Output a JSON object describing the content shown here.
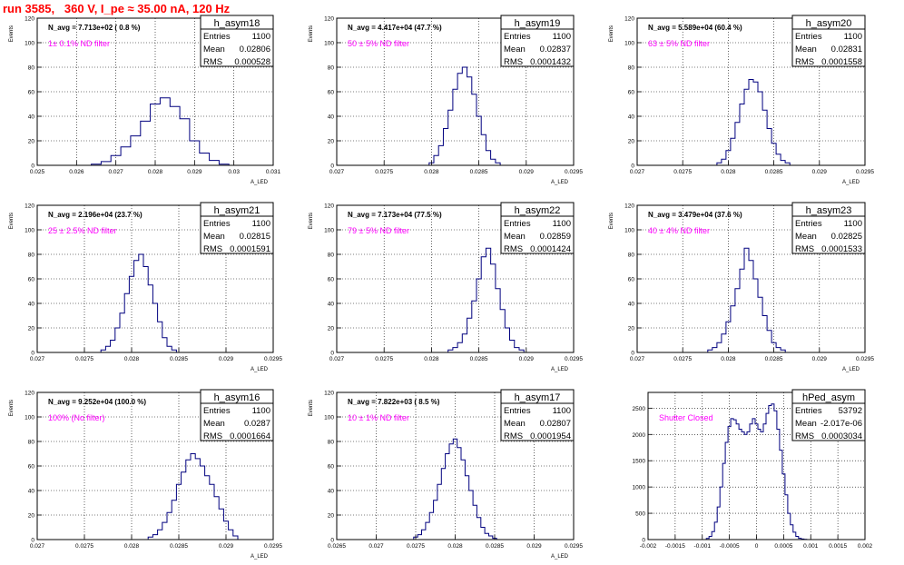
{
  "header": {
    "run_title": "run 3585,   360 V, I_pe ≈ 35.00 nA, 120 Hz"
  },
  "colors": {
    "title": "#ff0000",
    "annotation": "#ff00ff",
    "histogram": "#00007f",
    "frame": "#000000",
    "grid": "#000000"
  },
  "chart_data": [
    {
      "type": "bar",
      "title": "h_asym18",
      "navg": "N_avg = 7.713e+02 ( 0.8 %)",
      "annotation": "1± 0.1% ND filter",
      "stats": {
        "entries_label": "Entries",
        "entries": "1100",
        "mean_label": "Mean",
        "mean": "0.02806",
        "rms_label": "RMS",
        "rms": "0.000528"
      },
      "xlabel": "A_LED",
      "ylabel": "Events",
      "xlim": [
        0.025,
        0.031
      ],
      "ylim": [
        0,
        120
      ],
      "xticks": [
        "0.025",
        "0.026",
        "0.027",
        "0.028",
        "0.029",
        "0.03",
        "0.031"
      ],
      "yticks": [
        "0",
        "20",
        "40",
        "60",
        "80",
        "100",
        "120"
      ],
      "x": [
        0.0265,
        0.02675,
        0.027,
        0.02725,
        0.0275,
        0.02775,
        0.028,
        0.02825,
        0.0285,
        0.02875,
        0.029,
        0.02925,
        0.0295,
        0.02975
      ],
      "values": [
        1,
        3,
        8,
        15,
        24,
        36,
        50,
        55,
        48,
        38,
        20,
        10,
        4,
        1
      ]
    },
    {
      "type": "bar",
      "title": "h_asym19",
      "navg": "N_avg = 4.417e+04 (47.7 %)",
      "annotation": "50 ± 5% ND filter",
      "stats": {
        "entries_label": "Entries",
        "entries": "1100",
        "mean_label": "Mean",
        "mean": "0.02837",
        "rms_label": "RMS",
        "rms": "0.0001432"
      },
      "xlabel": "A_LED",
      "ylabel": "Events",
      "xlim": [
        0.027,
        0.0295
      ],
      "ylim": [
        0,
        120
      ],
      "xticks": [
        "0.027",
        "0.0275",
        "0.028",
        "0.0285",
        "0.029",
        "0.0295"
      ],
      "yticks": [
        "0",
        "20",
        "40",
        "60",
        "80",
        "100",
        "120"
      ],
      "x": [
        0.028,
        0.02805,
        0.0281,
        0.02815,
        0.0282,
        0.02825,
        0.0283,
        0.02835,
        0.0284,
        0.02845,
        0.0285,
        0.02855,
        0.0286,
        0.02865,
        0.0287
      ],
      "values": [
        2,
        8,
        16,
        30,
        45,
        62,
        75,
        80,
        72,
        58,
        40,
        25,
        12,
        5,
        2
      ]
    },
    {
      "type": "bar",
      "title": "h_asym20",
      "navg": "N_avg = 5.589e+04 (60.4 %)",
      "annotation": "63 ± 5% ND filter",
      "stats": {
        "entries_label": "Entries",
        "entries": "1100",
        "mean_label": "Mean",
        "mean": "0.02831",
        "rms_label": "RMS",
        "rms": "0.0001558"
      },
      "xlabel": "A_LED",
      "ylabel": "Events",
      "xlim": [
        0.027,
        0.0295
      ],
      "ylim": [
        0,
        120
      ],
      "xticks": [
        "0.027",
        "0.0275",
        "0.028",
        "0.0285",
        "0.029",
        "0.0295"
      ],
      "yticks": [
        "0",
        "20",
        "40",
        "60",
        "80",
        "100",
        "120"
      ],
      "x": [
        0.0279,
        0.02795,
        0.028,
        0.02805,
        0.0281,
        0.02815,
        0.0282,
        0.02825,
        0.0283,
        0.02835,
        0.0284,
        0.02845,
        0.0285,
        0.02855,
        0.0286,
        0.02865
      ],
      "values": [
        2,
        5,
        12,
        22,
        35,
        50,
        62,
        70,
        68,
        60,
        45,
        30,
        18,
        9,
        4,
        2
      ]
    },
    {
      "type": "bar",
      "title": "h_asym21",
      "navg": "N_avg = 2.196e+04 (23.7 %)",
      "annotation": "25 ± 2.5% ND filter",
      "stats": {
        "entries_label": "Entries",
        "entries": "1100",
        "mean_label": "Mean",
        "mean": "0.02815",
        "rms_label": "RMS",
        "rms": "0.0001591"
      },
      "xlabel": "A_LED",
      "ylabel": "Events",
      "xlim": [
        0.027,
        0.0295
      ],
      "ylim": [
        0,
        120
      ],
      "xticks": [
        "0.027",
        "0.0275",
        "0.028",
        "0.0285",
        "0.029",
        "0.0295"
      ],
      "yticks": [
        "0",
        "20",
        "40",
        "60",
        "80",
        "100",
        "120"
      ],
      "x": [
        0.0277,
        0.02775,
        0.0278,
        0.02785,
        0.0279,
        0.02795,
        0.028,
        0.02805,
        0.0281,
        0.02815,
        0.0282,
        0.02825,
        0.0283,
        0.02835,
        0.0284,
        0.02845
      ],
      "values": [
        2,
        5,
        10,
        20,
        32,
        48,
        62,
        75,
        80,
        70,
        55,
        40,
        25,
        12,
        5,
        2
      ]
    },
    {
      "type": "bar",
      "title": "h_asym22",
      "navg": "N_avg = 7.173e+04 (77.5 %)",
      "annotation": "79 ± 5% ND filter",
      "stats": {
        "entries_label": "Entries",
        "entries": "1100",
        "mean_label": "Mean",
        "mean": "0.02859",
        "rms_label": "RMS",
        "rms": "0.0001424"
      },
      "xlabel": "A_LED",
      "ylabel": "Events",
      "xlim": [
        0.027,
        0.0295
      ],
      "ylim": [
        0,
        120
      ],
      "xticks": [
        "0.027",
        "0.0275",
        "0.028",
        "0.0285",
        "0.029",
        "0.0295"
      ],
      "yticks": [
        "0",
        "20",
        "40",
        "60",
        "80",
        "100",
        "120"
      ],
      "x": [
        0.0282,
        0.02825,
        0.0283,
        0.02835,
        0.0284,
        0.02845,
        0.0285,
        0.02855,
        0.0286,
        0.02865,
        0.0287,
        0.02875,
        0.0288,
        0.02885,
        0.0289,
        0.02895
      ],
      "values": [
        2,
        4,
        8,
        15,
        28,
        42,
        60,
        78,
        85,
        72,
        52,
        35,
        20,
        10,
        4,
        2
      ]
    },
    {
      "type": "bar",
      "title": "h_asym23",
      "navg": "N_avg = 3.479e+04 (37.6 %)",
      "annotation": "40 ± 4% ND filter",
      "stats": {
        "entries_label": "Entries",
        "entries": "1100",
        "mean_label": "Mean",
        "mean": "0.02825",
        "rms_label": "RMS",
        "rms": "0.0001533"
      },
      "xlabel": "A_LED",
      "ylabel": "Events",
      "xlim": [
        0.027,
        0.0295
      ],
      "ylim": [
        0,
        120
      ],
      "xticks": [
        "0.027",
        "0.0275",
        "0.028",
        "0.0285",
        "0.029",
        "0.0295"
      ],
      "yticks": [
        "0",
        "20",
        "40",
        "60",
        "80",
        "100",
        "120"
      ],
      "x": [
        0.0278,
        0.02785,
        0.0279,
        0.02795,
        0.028,
        0.02805,
        0.0281,
        0.02815,
        0.0282,
        0.02825,
        0.0283,
        0.02835,
        0.0284,
        0.02845,
        0.0285,
        0.02855,
        0.0286
      ],
      "values": [
        2,
        4,
        8,
        15,
        25,
        38,
        52,
        68,
        85,
        75,
        60,
        45,
        30,
        18,
        8,
        4,
        2
      ]
    },
    {
      "type": "bar",
      "title": "h_asym16",
      "navg": "N_avg = 9.252e+04 (100.0 %)",
      "annotation": "100% (No filter)",
      "stats": {
        "entries_label": "Entries",
        "entries": "1100",
        "mean_label": "Mean",
        "mean": "0.0287",
        "rms_label": "RMS",
        "rms": "0.0001664"
      },
      "xlabel": "A_LED",
      "ylabel": "Events",
      "xlim": [
        0.027,
        0.0295
      ],
      "ylim": [
        0,
        120
      ],
      "xticks": [
        "0.027",
        "0.0275",
        "0.028",
        "0.0285",
        "0.029",
        "0.0295"
      ],
      "yticks": [
        "0",
        "20",
        "40",
        "60",
        "80",
        "100",
        "120"
      ],
      "x": [
        0.0282,
        0.02825,
        0.0283,
        0.02835,
        0.0284,
        0.02845,
        0.0285,
        0.02855,
        0.0286,
        0.02865,
        0.0287,
        0.02875,
        0.0288,
        0.02885,
        0.0289,
        0.02895,
        0.029,
        0.02905,
        0.0291
      ],
      "values": [
        2,
        4,
        8,
        14,
        22,
        32,
        45,
        55,
        65,
        70,
        66,
        60,
        52,
        45,
        35,
        25,
        15,
        8,
        3
      ]
    },
    {
      "type": "bar",
      "title": "h_asym17",
      "navg": "N_avg = 7.822e+03 ( 8.5 %)",
      "annotation": "10 ± 1% ND filter",
      "stats": {
        "entries_label": "Entries",
        "entries": "1100",
        "mean_label": "Mean",
        "mean": "0.02807",
        "rms_label": "RMS",
        "rms": "0.0001954"
      },
      "xlabel": "A_LED",
      "ylabel": "Events",
      "xlim": [
        0.0265,
        0.0295
      ],
      "ylim": [
        0,
        120
      ],
      "xticks": [
        "0.0265",
        "0.027",
        "0.0275",
        "0.028",
        "0.0285",
        "0.029",
        "0.0295"
      ],
      "yticks": [
        "0",
        "20",
        "40",
        "60",
        "80",
        "100",
        "120"
      ],
      "x": [
        0.0275,
        0.02755,
        0.0276,
        0.02765,
        0.0277,
        0.02775,
        0.0278,
        0.02785,
        0.0279,
        0.02795,
        0.028,
        0.02805,
        0.0281,
        0.02815,
        0.0282,
        0.02825,
        0.0283,
        0.02835,
        0.0284,
        0.02845,
        0.0285
      ],
      "values": [
        2,
        4,
        8,
        14,
        22,
        32,
        45,
        58,
        70,
        78,
        82,
        75,
        65,
        52,
        40,
        28,
        18,
        10,
        5,
        3,
        1
      ]
    },
    {
      "type": "bar",
      "title": "hPed_asym",
      "navg": "",
      "annotation": "Shutter Closed",
      "stats": {
        "entries_label": "Entries",
        "entries": "53792",
        "mean_label": "Mean",
        "mean": "-2.017e-06",
        "rms_label": "RMS",
        "rms": "0.0003034"
      },
      "xlabel": "",
      "ylabel": "",
      "xlim": [
        -0.002,
        0.002
      ],
      "ylim": [
        0,
        2800
      ],
      "xticks": [
        "-0.002",
        "-0.0015",
        "-0.001",
        "-0.0005",
        "0",
        "0.0005",
        "0.001",
        "0.0015",
        "0.002"
      ],
      "yticks": [
        "0",
        "500",
        "1000",
        "1500",
        "2000",
        "2500"
      ],
      "x": [
        -0.0009,
        -0.00085,
        -0.0008,
        -0.00075,
        -0.0007,
        -0.00065,
        -0.0006,
        -0.00055,
        -0.0005,
        -0.00045,
        -0.0004,
        -0.00035,
        -0.0003,
        -0.00025,
        -0.0002,
        -0.00015,
        -0.0001,
        -5e-05,
        0,
        5e-05,
        0.0001,
        0.00015,
        0.0002,
        0.00025,
        0.0003,
        0.00035,
        0.0004,
        0.00045,
        0.0005,
        0.00055,
        0.0006,
        0.00065,
        0.0007,
        0.00075,
        0.0008,
        0.00085,
        0.0009
      ],
      "values": [
        20,
        60,
        150,
        330,
        620,
        1000,
        1450,
        1850,
        2150,
        2300,
        2280,
        2200,
        2100,
        2050,
        2000,
        2050,
        2200,
        2300,
        2200,
        2100,
        2050,
        2200,
        2400,
        2550,
        2580,
        2450,
        2100,
        1700,
        1250,
        850,
        500,
        280,
        140,
        60,
        25,
        10,
        5
      ]
    }
  ]
}
